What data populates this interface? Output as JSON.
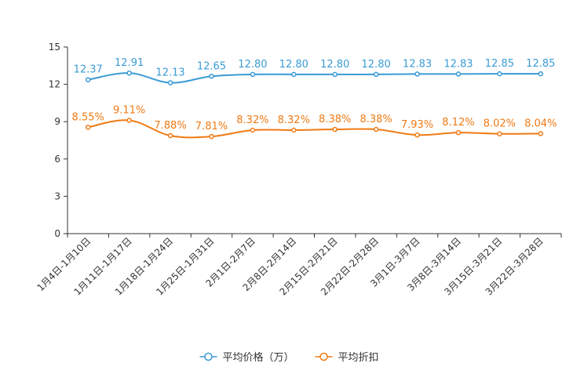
{
  "chart_data": {
    "type": "line",
    "title": "",
    "xlabel": "",
    "ylabel": "",
    "ylim": [
      0,
      15
    ],
    "yticks": [
      0,
      3,
      6,
      9,
      12,
      15
    ],
    "categories": [
      "1月4日-1月10日",
      "1月11日-1月17日",
      "1月18日-1月24日",
      "1月25日-1月31日",
      "2月1日-2月7日",
      "2月8日-2月14日",
      "2月15日-2月21日",
      "2月22日-2月28日",
      "3月1日-3月7日",
      "3月8日-3月14日",
      "3月15日-3月21日",
      "3月22日-3月28日"
    ],
    "series": [
      {
        "name": "平均价格（万）",
        "color": "#3a9bd5",
        "values": [
          12.37,
          12.91,
          12.13,
          12.65,
          12.8,
          12.8,
          12.8,
          12.8,
          12.83,
          12.83,
          12.85,
          12.85
        ],
        "labels": [
          "12.37",
          "12.91",
          "12.13",
          "12.65",
          "12.80",
          "12.80",
          "12.80",
          "12.80",
          "12.83",
          "12.83",
          "12.85",
          "12.85"
        ]
      },
      {
        "name": "平均折扣",
        "color": "#f07a14",
        "values": [
          8.55,
          9.11,
          7.88,
          7.81,
          8.32,
          8.32,
          8.38,
          8.38,
          7.93,
          8.12,
          8.02,
          8.04
        ],
        "labels": [
          "8.55%",
          "9.11%",
          "7.88%",
          "7.81%",
          "8.32%",
          "8.32%",
          "8.38%",
          "8.38%",
          "7.93%",
          "8.12%",
          "8.02%",
          "8.04%"
        ]
      }
    ],
    "legend": "bottom"
  }
}
